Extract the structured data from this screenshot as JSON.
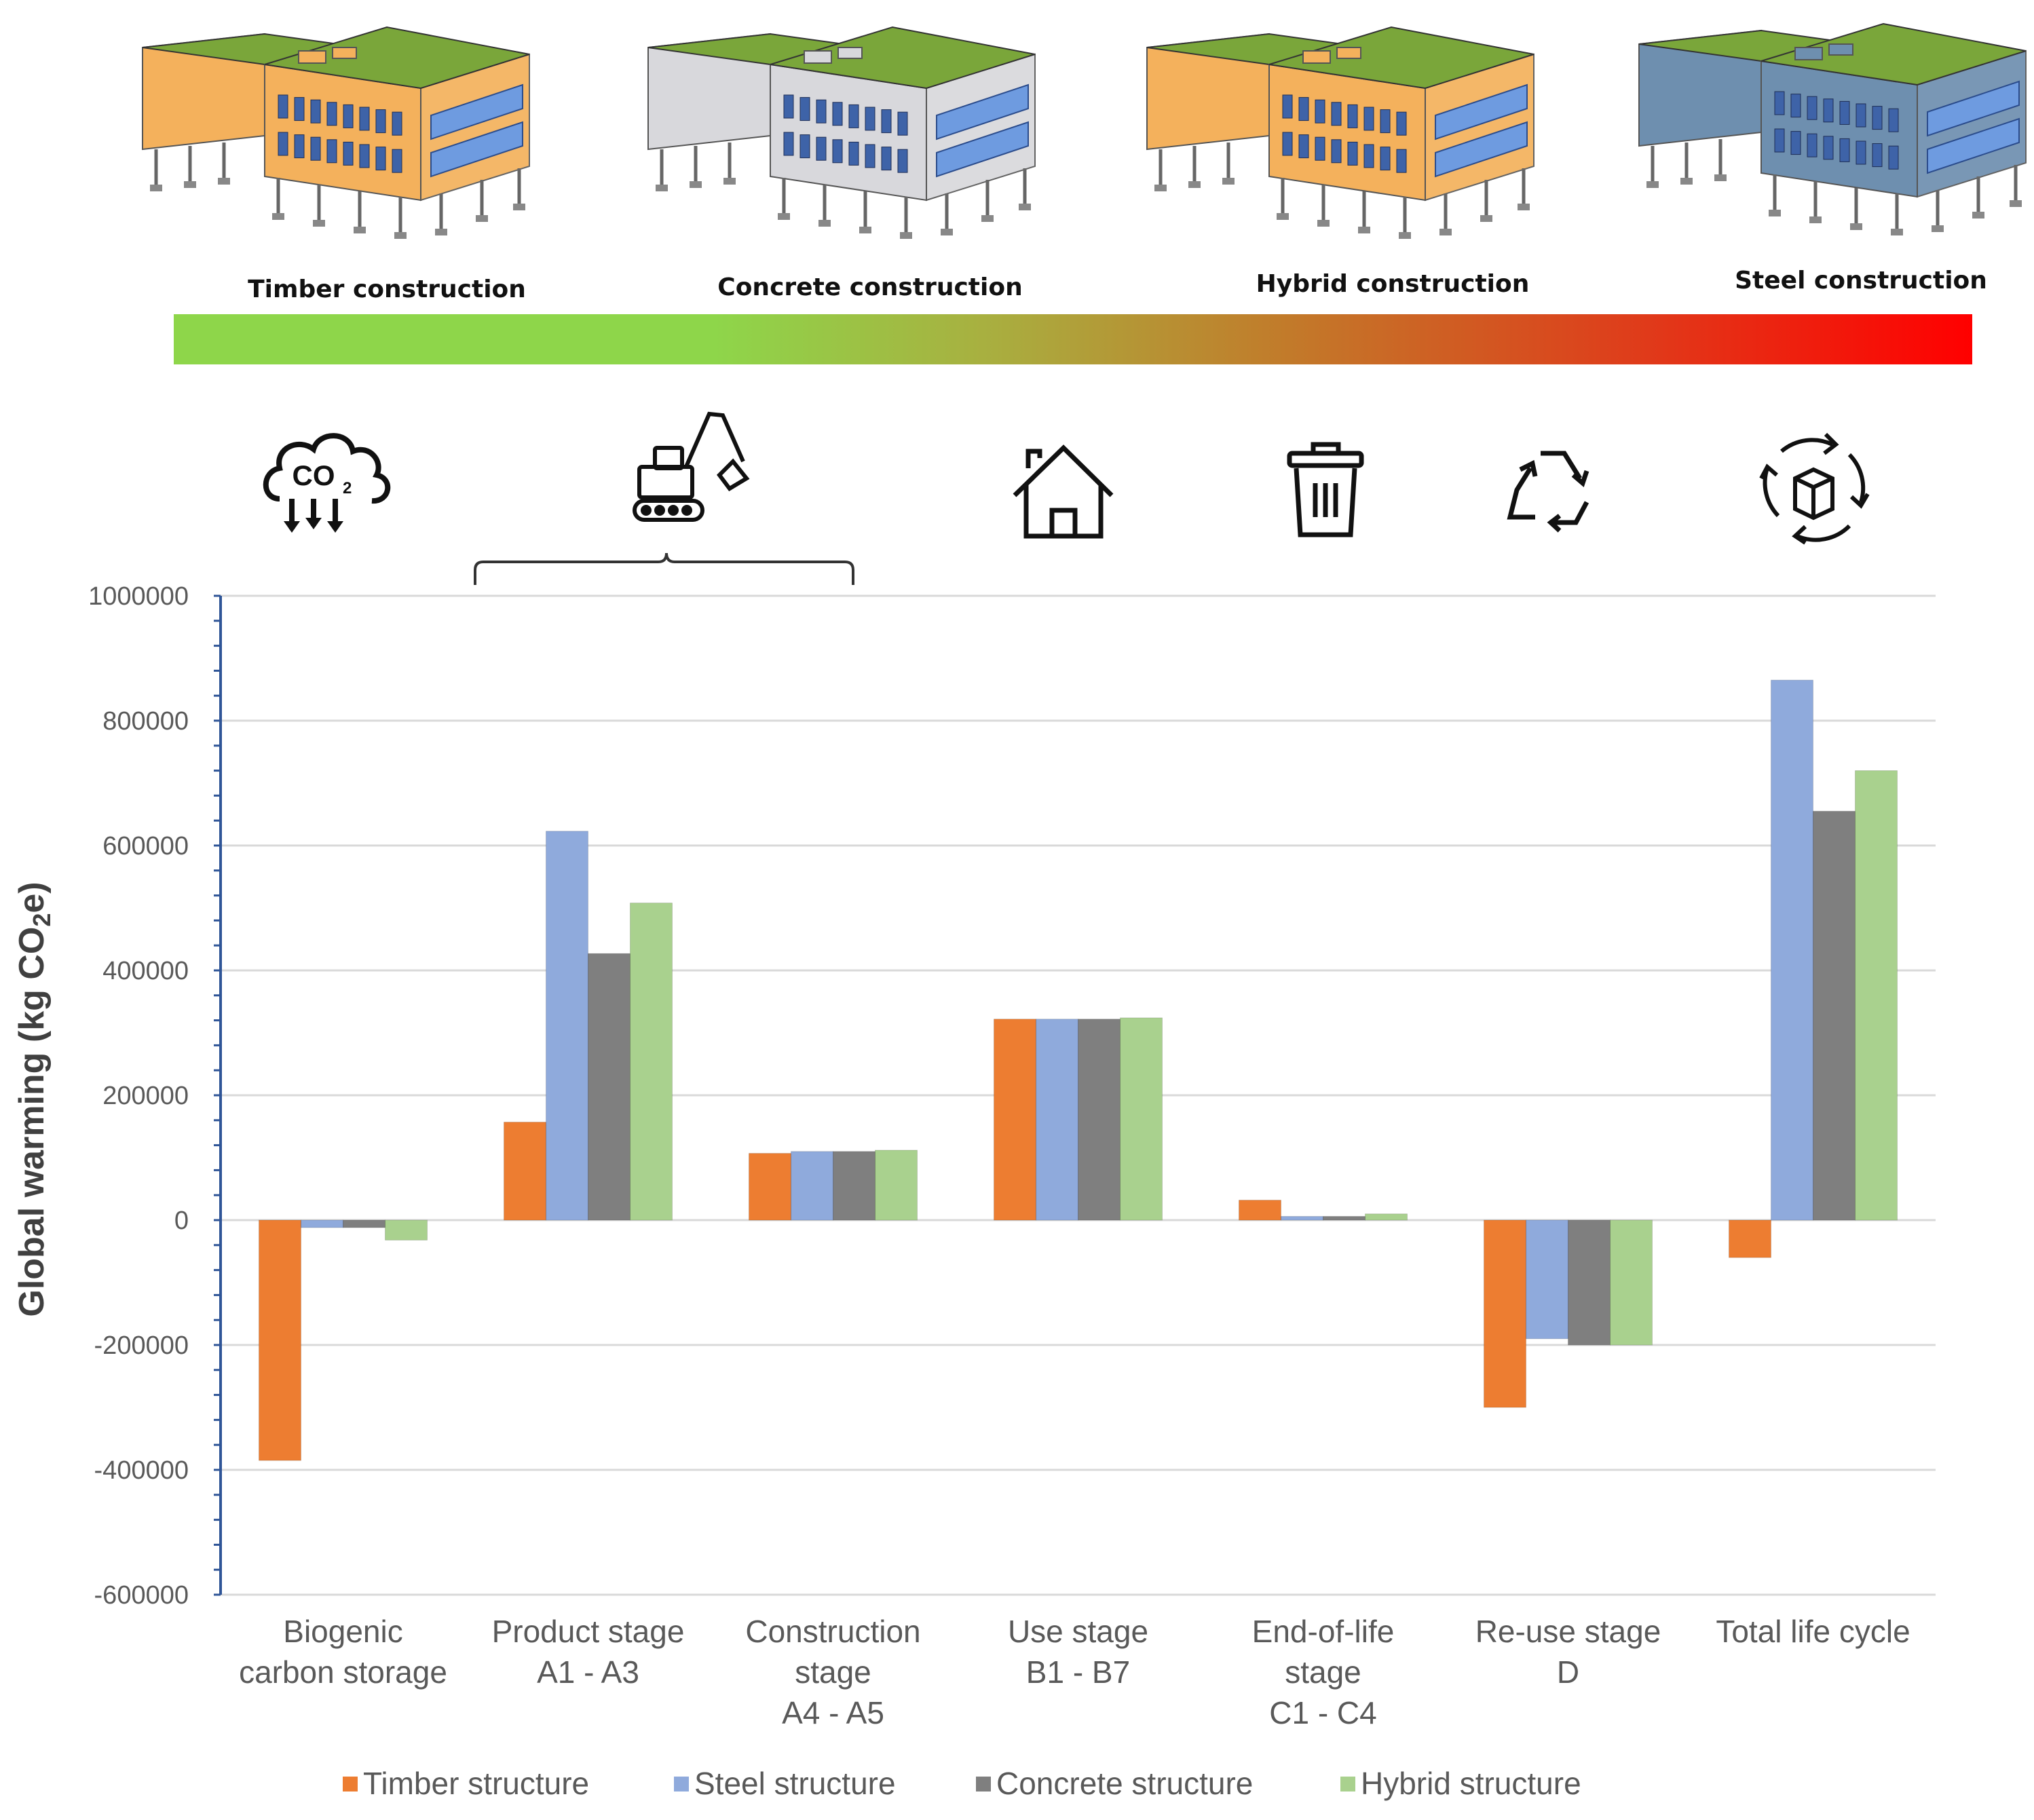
{
  "colors": {
    "timber": "#ED7D31",
    "steel": "#8FAADC",
    "concrete": "#7F7F7F",
    "hybrid": "#A9D18E",
    "gradient": [
      "#8ED64A",
      "#A8B040",
      "#C27A2A",
      "#E03A1A",
      "#FF0000"
    ],
    "roof": "#7AA63A",
    "axis": "#2F5597",
    "grid": "#D9D9D9"
  },
  "buildings": [
    {
      "label": "Timber construction",
      "wall": "#F4B15C",
      "icon": "timber-building"
    },
    {
      "label": "Concrete construction",
      "wall": "#D8D8DC",
      "icon": "concrete-building"
    },
    {
      "label": "Hybrid construction",
      "wall": "#F4B15C",
      "icon": "hybrid-building"
    },
    {
      "label": "Steel construction",
      "wall": "#6E8FAF",
      "icon": "steel-building"
    }
  ],
  "stage_icons": [
    {
      "name": "co2-storage-icon",
      "text": "CO",
      "sub": "2"
    },
    {
      "name": "excavator-icon"
    },
    {
      "name": "house-icon"
    },
    {
      "name": "trash-bin-icon"
    },
    {
      "name": "recycle-icon"
    },
    {
      "name": "life-cycle-icon"
    }
  ],
  "chart_data": {
    "type": "bar",
    "title": "",
    "xlabel": "",
    "ylabel": "Global warming (kg CO",
    "ylabel_sub": "2",
    "ylabel_tail": "e)",
    "ylim": [
      -600000,
      1000000
    ],
    "yticks": [
      1000000,
      800000,
      600000,
      400000,
      200000,
      0,
      -200000,
      -400000,
      -600000
    ],
    "ytick_labels": [
      "1000000",
      "800000",
      "600000",
      "400000",
      "200000",
      "0",
      "-200000",
      "-400000",
      "-600000"
    ],
    "grid": true,
    "legend_position": "bottom",
    "categories": [
      [
        "Biogenic",
        "carbon storage"
      ],
      [
        "Product stage",
        "A1 - A3"
      ],
      [
        "Construction",
        "stage",
        "A4 - A5"
      ],
      [
        "Use stage",
        "B1 - B7"
      ],
      [
        "End-of-life",
        "stage",
        "C1 - C4"
      ],
      [
        "Re-use stage",
        "D"
      ],
      [
        "Total life cycle"
      ]
    ],
    "series": [
      {
        "name": "Timber structure",
        "key": "timber",
        "values": [
          -385000,
          157000,
          107000,
          322000,
          32000,
          -300000,
          -60000
        ]
      },
      {
        "name": "Steel structure",
        "key": "steel",
        "values": [
          -12000,
          623000,
          110000,
          322000,
          6000,
          -190000,
          865000
        ]
      },
      {
        "name": "Concrete structure",
        "key": "concrete",
        "values": [
          -12000,
          427000,
          110000,
          322000,
          6000,
          -200000,
          655000
        ]
      },
      {
        "name": "Hybrid structure",
        "key": "hybrid",
        "values": [
          -32000,
          508000,
          112000,
          324000,
          10000,
          -200000,
          720000
        ]
      }
    ]
  }
}
